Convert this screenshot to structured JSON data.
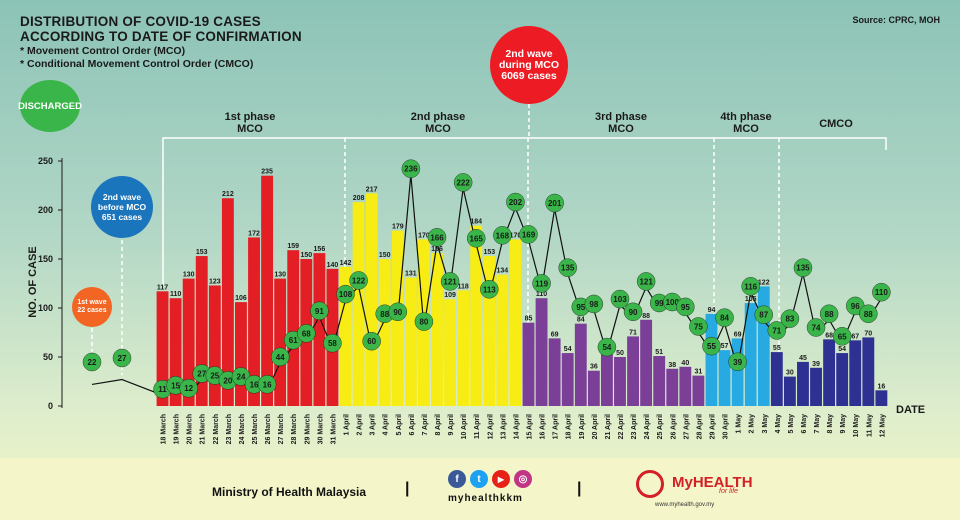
{
  "header": {
    "title_line1": "DISTRIBUTION OF COVID-19 CASES",
    "title_line2": "ACCORDING TO DATE OF CONFIRMATION",
    "note_mco": "* Movement Control Order (MCO)",
    "note_cmco": "* Conditional Movement Control Order (CMCO)",
    "source": "Source: CPRC, MOH"
  },
  "legend": {
    "discharged": "DISCHARGED"
  },
  "callouts": {
    "first_wave": [
      "1st wave",
      "22 cases"
    ],
    "second_wave_before": [
      "2nd wave",
      "before MCO",
      "651 cases"
    ],
    "second_wave_during": [
      "2nd wave",
      "during MCO",
      "6069 cases"
    ]
  },
  "phases": [
    {
      "label": [
        "1st phase",
        "MCO"
      ]
    },
    {
      "label": [
        "2nd phase",
        "MCO"
      ]
    },
    {
      "label": [
        "3rd phase",
        "MCO"
      ]
    },
    {
      "label": [
        "4th phase",
        "MCO"
      ]
    },
    {
      "label": [
        "CMCO"
      ]
    }
  ],
  "colors": {
    "red": "#e31e24",
    "yellow": "#f7ec13",
    "purple": "#7b3f98",
    "blue": "#27aae1",
    "navy": "#2e3192",
    "discharged": "#39b54a",
    "orange": "#f26522",
    "wave_blue": "#1b75bc",
    "wave_red": "#ed1c24"
  },
  "chart_data": {
    "type": "bar",
    "title": "DISTRIBUTION OF COVID-19 CASES ACCORDING TO DATE OF CONFIRMATION",
    "ylabel": "NO. OF CASE",
    "xlabel": "DATE",
    "ylim": [
      0,
      250
    ],
    "yticks": [
      0,
      50,
      100,
      150,
      200,
      250
    ],
    "early_discharged": [
      22,
      27
    ],
    "categories": [
      "18 March",
      "19 March",
      "20 March",
      "21 March",
      "22 March",
      "23 March",
      "24 March",
      "25 March",
      "26 March",
      "27 March",
      "28 March",
      "29 March",
      "30 March",
      "31 March",
      "1 April",
      "2 April",
      "3 April",
      "4 April",
      "5 April",
      "6 April",
      "7 April",
      "8 April",
      "9 April",
      "10 April",
      "11 April",
      "12 April",
      "13 April",
      "14 April",
      "15 April",
      "16 April",
      "17 April",
      "18 April",
      "19 April",
      "20 April",
      "21 April",
      "22 April",
      "23 April",
      "24 April",
      "25 April",
      "26 April",
      "27 April",
      "28 April",
      "29 April",
      "30 April",
      "1 May",
      "2 May",
      "3 May",
      "4 May",
      "5 May",
      "6 May",
      "7 May",
      "8 May",
      "9 May",
      "10 May",
      "11 May",
      "12 May"
    ],
    "series": [
      {
        "name": "New cases",
        "values": [
          117,
          110,
          130,
          153,
          123,
          212,
          106,
          172,
          235,
          130,
          159,
          150,
          156,
          140,
          142,
          208,
          217,
          150,
          179,
          131,
          170,
          156,
          109,
          118,
          184,
          153,
          134,
          170,
          85,
          110,
          69,
          54,
          84,
          36,
          57,
          50,
          71,
          88,
          51,
          38,
          40,
          31,
          94,
          57,
          69,
          105,
          122,
          55,
          30,
          45,
          39,
          68,
          54,
          67,
          70,
          16
        ]
      },
      {
        "name": "Discharged",
        "values": [
          11,
          15,
          12,
          27,
          25,
          20,
          24,
          16,
          16,
          44,
          61,
          68,
          91,
          58,
          108,
          122,
          60,
          88,
          90,
          236,
          80,
          166,
          121,
          222,
          165,
          113,
          168,
          202,
          169,
          119,
          201,
          135,
          95,
          98,
          54,
          103,
          90,
          121,
          99,
          100,
          95,
          75,
          55,
          84,
          39,
          116,
          87,
          71,
          83,
          135,
          74,
          88,
          65,
          96,
          88,
          110
        ]
      }
    ],
    "phase_colors": [
      "red",
      "red",
      "red",
      "red",
      "red",
      "red",
      "red",
      "red",
      "red",
      "red",
      "red",
      "red",
      "red",
      "red",
      "yellow",
      "yellow",
      "yellow",
      "yellow",
      "yellow",
      "yellow",
      "yellow",
      "yellow",
      "yellow",
      "yellow",
      "yellow",
      "yellow",
      "yellow",
      "yellow",
      "purple",
      "purple",
      "purple",
      "purple",
      "purple",
      "purple",
      "purple",
      "purple",
      "purple",
      "purple",
      "purple",
      "purple",
      "purple",
      "purple",
      "blue",
      "blue",
      "blue",
      "blue",
      "blue",
      "navy",
      "navy",
      "navy",
      "navy",
      "navy",
      "navy",
      "navy",
      "navy",
      "navy"
    ]
  },
  "footer": {
    "ministry": "Ministry of Health Malaysia",
    "separator": "|",
    "handle": "myhealthkkm",
    "social": [
      "f",
      "t",
      "▶",
      "◎"
    ],
    "brand": "MyHEALTH",
    "brand_tagline": "for life",
    "url": "www.myhealth.gov.my"
  }
}
